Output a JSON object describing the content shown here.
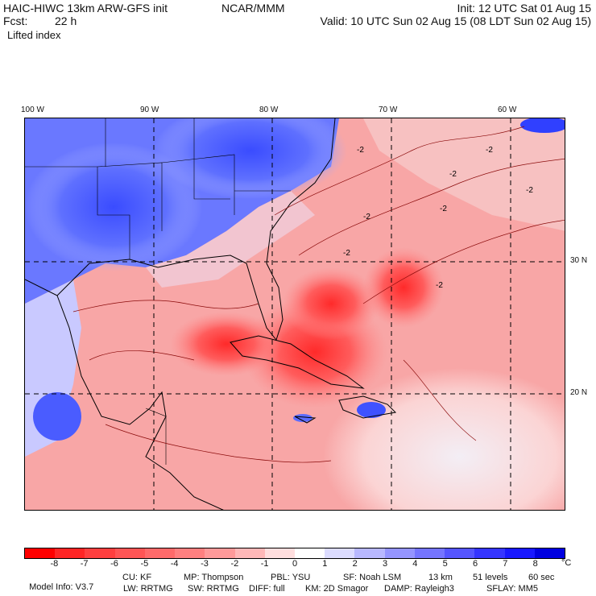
{
  "header": {
    "model": "HAIC-HIWC 13km ARW-GFS init",
    "org": "NCAR/MMM",
    "fcst_label": "Fcst:",
    "fcst_value": "22 h",
    "field": "Lifted index",
    "init": "Init: 12 UTC Sat 01 Aug 15",
    "valid": "Valid: 10 UTC Sun 02 Aug 15 (08 LDT Sun 02 Aug 15)"
  },
  "map": {
    "lon_labels": [
      "100 W",
      "90 W",
      "80 W",
      "70 W",
      "60 W"
    ],
    "lat_labels": [
      "30 N",
      "20 N"
    ],
    "contour_labels": [
      "-2",
      "-2",
      "-2",
      "-2",
      "-2",
      "-2",
      "-2",
      "-2"
    ]
  },
  "colorbar": {
    "tick_labels": [
      "-8",
      "-7",
      "-6",
      "-5",
      "-4",
      "-3",
      "-2",
      "-1",
      "0",
      "1",
      "2",
      "3",
      "4",
      "5",
      "6",
      "7",
      "8"
    ],
    "unit": "°C",
    "colors": [
      "#ff0000",
      "#ff2525",
      "#ff3f3f",
      "#ff5555",
      "#ff6a6a",
      "#ff8080",
      "#ff9a9a",
      "#ffb8b8",
      "#ffdede",
      "#ffffff",
      "#dcdcff",
      "#b8b8ff",
      "#9595ff",
      "#7575ff",
      "#5555ff",
      "#3535ff",
      "#1818ff",
      "#0000e0"
    ]
  },
  "footer": {
    "line1": [
      "Model Info: V3.7",
      "CU: KF",
      "MP: Thompson",
      "PBL: YSU",
      "SF: Noah LSM",
      "13 km",
      "51 levels",
      "60 sec"
    ],
    "line2": [
      "LW: RRTMG",
      "SW: RRTMG",
      "DIFF: full",
      "KM: 2D Smagor",
      "DAMP: Rayleigh3",
      "SFLAY: MM5"
    ]
  }
}
